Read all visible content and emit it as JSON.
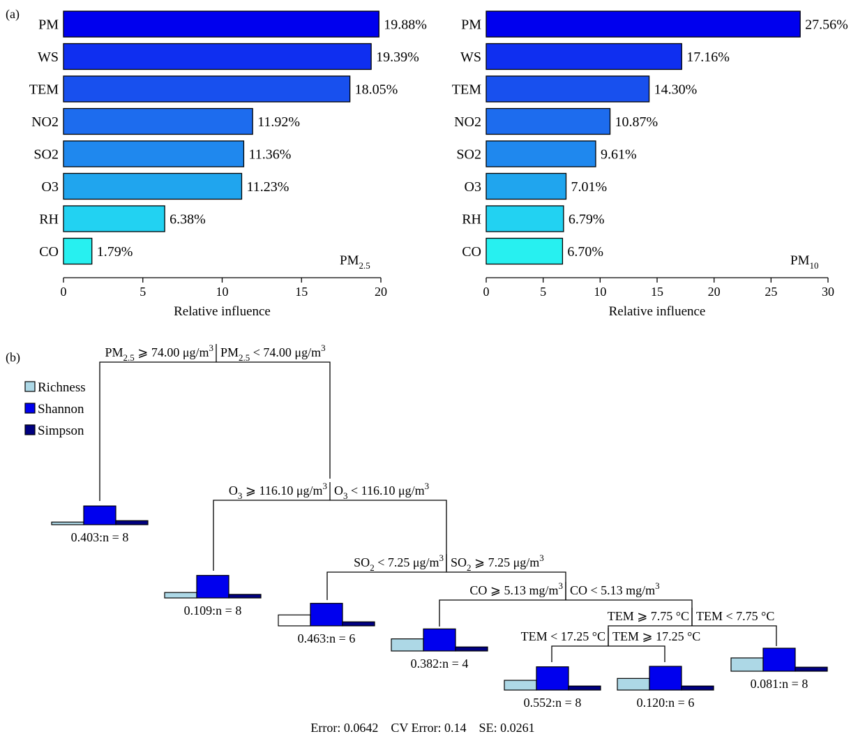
{
  "panel_labels": {
    "a": "(a)",
    "b": "(b)"
  },
  "colors": {
    "bars": [
      "#0000ee",
      "#0f2ff0",
      "#1850ee",
      "#1d6cee",
      "#1f88ee",
      "#20a5ee",
      "#22d2f2",
      "#27f0f0"
    ],
    "bar_stroke": "#000000",
    "richness": "#add8e6",
    "shannon": "#0000ee",
    "simpson": "#000080"
  },
  "chart_data": [
    {
      "type": "bar",
      "orientation": "horizontal",
      "panel": "a-left",
      "categories": [
        "PM",
        "WS",
        "TEM",
        "NO2",
        "SO2",
        "O3",
        "RH",
        "CO"
      ],
      "values": [
        19.88,
        19.39,
        18.05,
        11.92,
        11.36,
        11.23,
        6.38,
        1.79
      ],
      "data_labels": [
        "19.88%",
        "19.39%",
        "18.05%",
        "11.92%",
        "11.36%",
        "11.23%",
        "6.38%",
        "1.79%"
      ],
      "xlabel": "Relative influence",
      "annotation": {
        "main": "PM",
        "sub": "2.5"
      },
      "xlim": [
        0,
        20
      ],
      "xticks": [
        0,
        5,
        10,
        15,
        20
      ]
    },
    {
      "type": "bar",
      "orientation": "horizontal",
      "panel": "a-right",
      "categories": [
        "PM",
        "WS",
        "TEM",
        "NO2",
        "SO2",
        "O3",
        "RH",
        "CO"
      ],
      "values": [
        27.56,
        17.16,
        14.3,
        10.87,
        9.61,
        7.01,
        6.79,
        6.7
      ],
      "data_labels": [
        "27.56%",
        "17.16%",
        "14.30%",
        "10.87%",
        "9.61%",
        "7.01%",
        "6.79%",
        "6.70%"
      ],
      "xlabel": "Relative influence",
      "annotation": {
        "main": "PM",
        "sub": "10"
      },
      "xlim": [
        0,
        30
      ],
      "xticks": [
        0,
        5,
        10,
        15,
        20,
        25,
        30
      ]
    }
  ],
  "tree": {
    "legend": [
      "Richness",
      "Shannon",
      "Simpson"
    ],
    "splits": [
      {
        "id": "s1",
        "left": [
          [
            "PM",
            ""
          ],
          [
            "2.5",
            "sub"
          ],
          [
            " ⩾ 74.00 μg/m",
            ""
          ],
          [
            "3",
            "sup"
          ]
        ],
        "right": [
          [
            "PM",
            ""
          ],
          [
            "2.5",
            "sub"
          ],
          [
            " < 74.00 μg/m",
            ""
          ],
          [
            "3",
            "sup"
          ]
        ]
      },
      {
        "id": "s2",
        "left": [
          [
            "O",
            ""
          ],
          [
            "3",
            "sub"
          ],
          [
            " ⩾ 116.10 μg/m",
            ""
          ],
          [
            "3",
            "sup"
          ]
        ],
        "right": [
          [
            "O",
            ""
          ],
          [
            "3",
            "sub"
          ],
          [
            " < 116.10 μg/m",
            ""
          ],
          [
            "3",
            "sup"
          ]
        ]
      },
      {
        "id": "s3",
        "left": [
          [
            "SO",
            ""
          ],
          [
            "2",
            "sub"
          ],
          [
            " < 7.25 μg/m",
            ""
          ],
          [
            "3",
            "sup"
          ]
        ],
        "right": [
          [
            "SO",
            ""
          ],
          [
            "2",
            "sub"
          ],
          [
            " ⩾ 7.25 μg/m",
            ""
          ],
          [
            "3",
            "sup"
          ]
        ]
      },
      {
        "id": "s4",
        "left": [
          [
            "CO ⩾ 5.13 mg/m",
            ""
          ],
          [
            "3",
            "sup"
          ]
        ],
        "right": [
          [
            "CO < 5.13 mg/m",
            ""
          ],
          [
            "3",
            "sup"
          ]
        ]
      },
      {
        "id": "s5",
        "left": [
          [
            "TEM ⩾ 7.75 °C",
            ""
          ]
        ],
        "right": [
          [
            "TEM < 7.75 °C",
            ""
          ]
        ]
      },
      {
        "id": "s6",
        "left": [
          [
            "TEM < 17.25 °C",
            ""
          ]
        ],
        "right": [
          [
            "TEM ⩾ 17.25 °C",
            ""
          ]
        ]
      }
    ],
    "leaves": [
      {
        "label": "0.403:n = 8",
        "richness": 0.11,
        "shannon": 0.79,
        "simpson": 0.17
      },
      {
        "label": "0.109:n = 8",
        "richness": 0.23,
        "shannon": 0.95,
        "simpson": 0.15
      },
      {
        "label": "0.463:n = 6",
        "richness": 0.46,
        "shannon": 0.95,
        "simpson": 0.17
      },
      {
        "label": "0.382:n = 4",
        "richness": 0.51,
        "shannon": 0.93,
        "simpson": 0.17
      },
      {
        "label": "0.552:n = 8",
        "richness": 0.41,
        "shannon": 0.98,
        "simpson": 0.17
      },
      {
        "label": "0.120:n = 6",
        "richness": 0.49,
        "shannon": 1.0,
        "simpson": 0.17
      },
      {
        "label": "0.081:n = 8",
        "richness": 0.56,
        "shannon": 0.97,
        "simpson": 0.17
      }
    ],
    "footer": "Error: 0.0642    CV Error: 0.14    SE: 0.0261"
  }
}
